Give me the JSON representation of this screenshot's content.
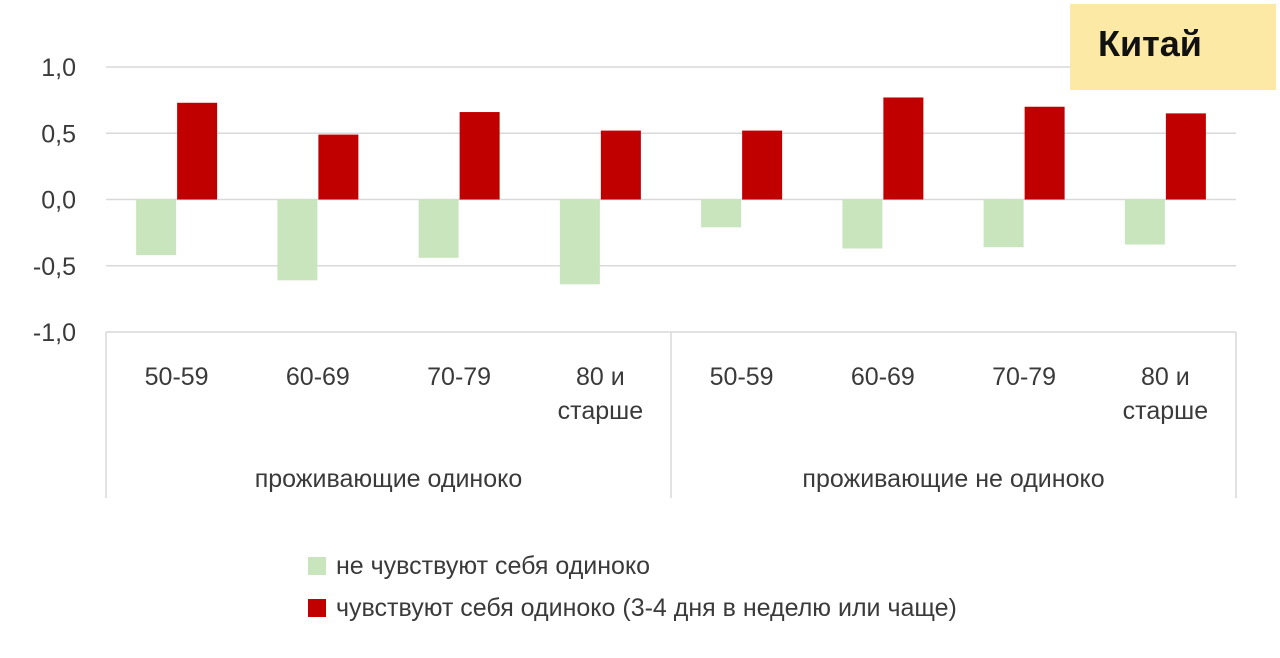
{
  "title": "Китай",
  "chart_data": {
    "type": "bar",
    "ylim": [
      -1.0,
      1.0
    ],
    "yticks": [
      "1,0",
      "0,5",
      "0,0",
      "-0,5",
      "-1,0"
    ],
    "ytick_values": [
      1.0,
      0.5,
      0.0,
      -0.5,
      -1.0
    ],
    "grid": true,
    "legend_position": "bottom",
    "groups": [
      {
        "label": "проживающие одиноко",
        "categories": [
          [
            "50-59"
          ],
          [
            "60-69"
          ],
          [
            "70-79"
          ],
          [
            "80 и",
            "старше"
          ]
        ]
      },
      {
        "label": "проживающие не одиноко",
        "categories": [
          [
            "50-59"
          ],
          [
            "60-69"
          ],
          [
            "70-79"
          ],
          [
            "80 и",
            "старше"
          ]
        ]
      }
    ],
    "series": [
      {
        "name": "не чувствуют себя одиноко",
        "color": "#c9e5bd",
        "values": [
          -0.42,
          -0.61,
          -0.44,
          -0.64,
          -0.21,
          -0.37,
          -0.36,
          -0.34
        ]
      },
      {
        "name": "чувствуют себя одиноко (3-4 дня в неделю или чаще)",
        "color": "#c00000",
        "values": [
          0.73,
          0.49,
          0.66,
          0.52,
          0.52,
          0.77,
          0.7,
          0.65
        ]
      }
    ]
  }
}
